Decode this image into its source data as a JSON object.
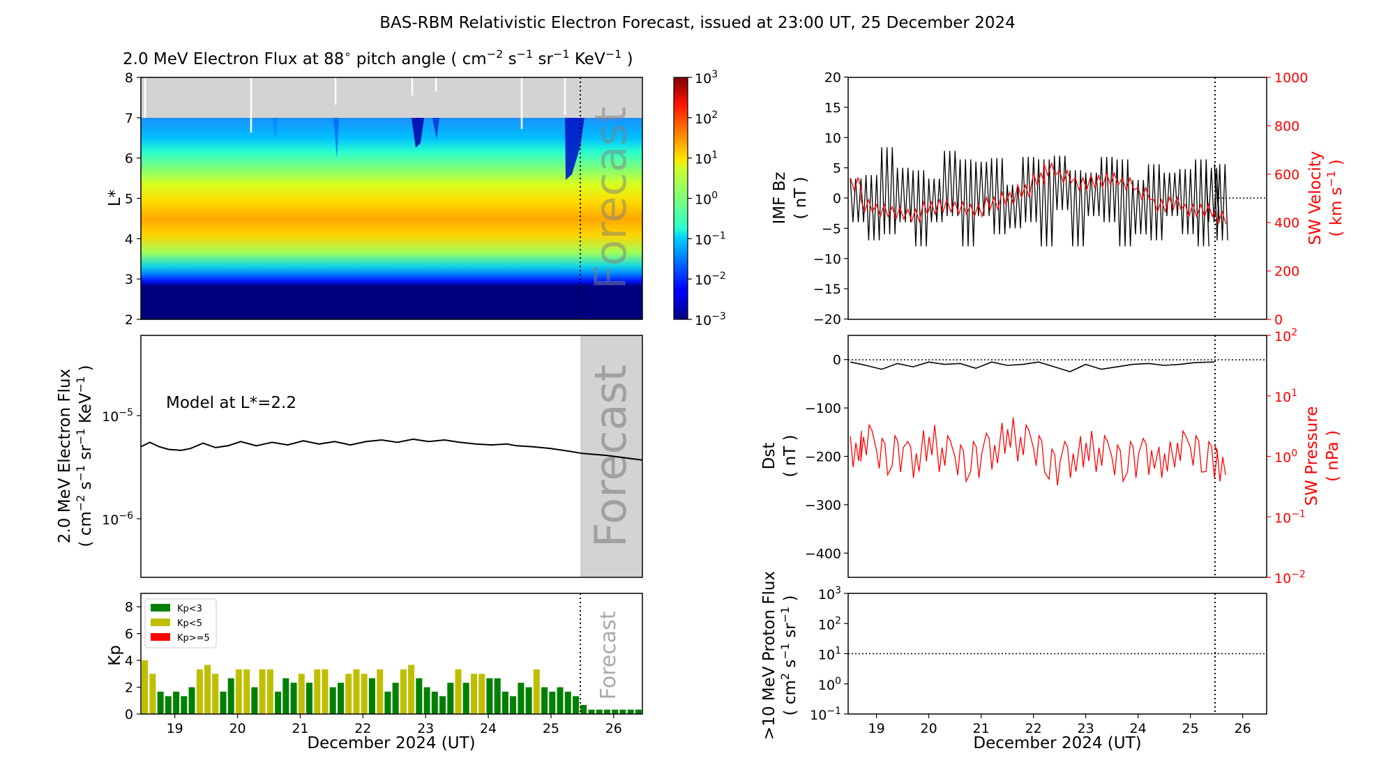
{
  "suptitle": "BAS-RBM Relativistic Electron Forecast, issued at 23:00 UT, 25 December 2024",
  "colors": {
    "observed": "#000000",
    "solar_wind": "#ff0000",
    "forecast_shade": "#d3d3d3",
    "no_data": "#d3d3d3",
    "kp_low": "#008000",
    "kp_mid": "#bfbf00",
    "kp_high": "#ff0000"
  },
  "chart_data": [
    {
      "id": "flux_map",
      "type": "heatmap",
      "title": "2.0 MeV Electron Flux at 88$^\\circ$ pitch angle ( cm$^{-2}$ s$^{-1}$ sr$^{-1}$ KeV$^{-1}$ )",
      "title_parts": {
        "main": "2.0 MeV Electron Flux at 88",
        "deg": "∘",
        "tail": " pitch angle ( cm",
        "e1": "−2",
        "s": " s",
        "e2": "−1",
        "sr": " sr",
        "e3": "−1",
        "kev": " KeV",
        "e4": "−1",
        "close": " )"
      },
      "ylabel": "L*",
      "ylim": [
        2,
        8
      ],
      "yticks": [
        "2",
        "3",
        "4",
        "5",
        "6",
        "7",
        "8"
      ],
      "xlim": [
        "2024-12-18T11:00",
        "2024-12-26T11:00"
      ],
      "forecast_start": "2024-12-25T23:00",
      "forecast_label": "Forecast",
      "colorbar": {
        "scale": "log",
        "range": [
          0.001,
          1000
        ],
        "ticks": [
          {
            "base": "10",
            "exp": "3"
          },
          {
            "base": "10",
            "exp": "2"
          },
          {
            "base": "10",
            "exp": "1"
          },
          {
            "base": "10",
            "exp": "0"
          },
          {
            "base": "10",
            "exp": "−1"
          },
          {
            "base": "10",
            "exp": "−2"
          },
          {
            "base": "10",
            "exp": "−3"
          }
        ]
      },
      "log10_flux_profile": [
        {
          "L": 2.0,
          "v": -3.0
        },
        {
          "L": 3.0,
          "v": -3.0
        },
        {
          "L": 3.1,
          "v": -2.2
        },
        {
          "L": 3.25,
          "v": -1.2
        },
        {
          "L": 3.5,
          "v": 0.3
        },
        {
          "L": 4.0,
          "v": 1.5
        },
        {
          "L": 4.5,
          "v": 1.7
        },
        {
          "L": 5.0,
          "v": 1.2
        },
        {
          "L": 5.5,
          "v": 0.6
        },
        {
          "L": 6.0,
          "v": 0.0
        },
        {
          "L": 6.5,
          "v": -0.5
        },
        {
          "L": 7.0,
          "v": -1.1
        }
      ],
      "no_data_above_L": 7.0
    },
    {
      "id": "flux_l22",
      "type": "line",
      "ylabel": "2.0 MeV Electron Flux",
      "ylabel_units": {
        "open": "( cm",
        "e1": "−2",
        "s": " s",
        "e2": "−1",
        "sr": " sr",
        "e3": "−1",
        "kev": " KeV",
        "e4": "−1",
        "close": " )"
      },
      "yscale": "log",
      "ylim": [
        2.7e-07,
        6e-05
      ],
      "yticks": [
        {
          "base": "10",
          "exp": "−5"
        },
        {
          "base": "10",
          "exp": "−6"
        }
      ],
      "annotation": "Model at L*=2.2",
      "forecast_label": "Forecast",
      "x": [
        "18.46",
        "18.6",
        "18.75",
        "18.9",
        "19.1",
        "19.25",
        "19.45",
        "19.65",
        "19.85",
        "20.05",
        "20.3",
        "20.55",
        "20.8",
        "21.05",
        "21.3",
        "21.55",
        "21.8",
        "22.05",
        "22.3",
        "22.55",
        "22.8",
        "23.05",
        "23.3",
        "23.55",
        "23.8",
        "24.05",
        "24.3",
        "24.45",
        "24.7",
        "25.0",
        "25.3",
        "25.5",
        "25.9",
        "26.46"
      ],
      "values": [
        5e-06,
        5.5e-06,
        5e-06,
        4.7e-06,
        4.6e-06,
        4.8e-06,
        5.4e-06,
        4.9e-06,
        5.1e-06,
        5.6e-06,
        5.1e-06,
        5.5e-06,
        5.2e-06,
        5.7e-06,
        5.3e-06,
        5.6e-06,
        5.2e-06,
        5.6e-06,
        5.8e-06,
        5.5e-06,
        5.9e-06,
        5.6e-06,
        5.8e-06,
        5.5e-06,
        5.3e-06,
        5.2e-06,
        5.3e-06,
        5.1e-06,
        5e-06,
        4.8e-06,
        4.5e-06,
        4.3e-06,
        4.1e-06,
        3.7e-06
      ],
      "x_units": "day of December 2024"
    },
    {
      "id": "kp",
      "type": "bar",
      "ylabel": "Kp",
      "ylim": [
        0,
        9
      ],
      "yticks": [
        "0",
        "2",
        "4",
        "6",
        "8"
      ],
      "xlabel": "December 2024 (UT)",
      "xticks": [
        "19",
        "20",
        "21",
        "22",
        "23",
        "24",
        "25",
        "26"
      ],
      "legend": [
        {
          "name": "Kp<3",
          "color": "#008000"
        },
        {
          "name": "Kp<5",
          "color": "#bfbf00"
        },
        {
          "name": "Kp>=5",
          "color": "#ff0000"
        }
      ],
      "legend_position": "top-left",
      "forecast_label": "Forecast",
      "values": [
        4.0,
        3.0,
        1.67,
        1.33,
        1.67,
        1.33,
        2.0,
        3.33,
        3.67,
        3.0,
        1.67,
        2.67,
        3.33,
        3.33,
        2.0,
        3.33,
        3.33,
        1.67,
        2.67,
        2.33,
        3.0,
        2.33,
        3.33,
        3.33,
        2.0,
        2.33,
        3.0,
        3.33,
        3.0,
        2.67,
        3.33,
        1.67,
        2.33,
        3.33,
        3.67,
        2.67,
        2.0,
        1.67,
        1.33,
        2.33,
        3.33,
        2.33,
        3.0,
        3.0,
        2.67,
        2.67,
        1.67,
        1.33,
        2.33,
        2.0,
        3.33,
        2.0,
        1.67,
        2.0,
        1.67,
        1.33,
        0.67,
        0.33,
        0.33,
        0.33,
        0.33,
        0.33,
        0.33,
        0.33
      ]
    },
    {
      "id": "imf_sw",
      "type": "line",
      "ylabel_left": [
        "IMF Bz",
        "( nT )"
      ],
      "ylim_left": [
        -20,
        20
      ],
      "yticks_left": [
        "20",
        "15",
        "10",
        "5",
        "0",
        "−5",
        "−10",
        "−15",
        "−20"
      ],
      "ylabel_right": "SW Velocity",
      "ylabel_right_units": {
        "open": "( km s",
        "e": "−1",
        "close": " )"
      },
      "ylim_right": [
        0,
        1000
      ],
      "yticks_right": [
        "1000",
        "800",
        "600",
        "400",
        "200",
        "0"
      ],
      "series": [
        {
          "axis": "left",
          "x": [
            "18.5",
            "18.8",
            "19.1",
            "19.4",
            "19.7",
            "20.0",
            "20.3",
            "20.6",
            "20.9",
            "21.2",
            "21.5",
            "21.8",
            "22.1",
            "22.4",
            "22.7",
            "23.0",
            "23.3",
            "23.6",
            "23.9",
            "24.2",
            "24.5",
            "24.8",
            "25.1",
            "25.3",
            "25.46"
          ],
          "values": [
            0,
            -1,
            2,
            1,
            -1,
            0,
            3,
            0,
            2,
            1,
            -1,
            2,
            0,
            3,
            -1,
            1,
            2,
            0,
            -1,
            0,
            1,
            0,
            0,
            1,
            0
          ]
        },
        {
          "axis": "right",
          "x": [
            "18.5",
            "18.7",
            "19.0",
            "19.3",
            "19.6",
            "19.9",
            "20.2",
            "20.5",
            "20.8",
            "21.1",
            "21.4",
            "21.7",
            "22.0",
            "22.2",
            "22.5",
            "22.8",
            "23.1",
            "23.4",
            "23.7",
            "24.0",
            "24.3",
            "24.6",
            "24.9",
            "25.2",
            "25.46"
          ],
          "values": [
            560,
            470,
            450,
            440,
            430,
            460,
            470,
            460,
            450,
            480,
            500,
            530,
            580,
            620,
            590,
            560,
            570,
            580,
            560,
            520,
            470,
            480,
            450,
            450,
            420
          ]
        }
      ]
    },
    {
      "id": "dst_pressure",
      "type": "line",
      "ylabel_left": [
        "Dst",
        "( nT )"
      ],
      "ylim_left": [
        -450,
        50
      ],
      "yticks_left": [
        "0",
        "−100",
        "−200",
        "−300",
        "−400"
      ],
      "ylabel_right": "SW Pressure",
      "ylabel_right_units": "( nPa )",
      "yscale_right": "log",
      "ylim_right": [
        0.01,
        100
      ],
      "yticks_right": [
        {
          "base": "10",
          "exp": "2"
        },
        {
          "base": "10",
          "exp": "1"
        },
        {
          "base": "10",
          "exp": "0"
        },
        {
          "base": "10",
          "exp": "−1"
        },
        {
          "base": "10",
          "exp": "−2"
        }
      ],
      "series": [
        {
          "axis": "left",
          "x": [
            "18.5",
            "18.8",
            "19.1",
            "19.4",
            "19.7",
            "20.0",
            "20.3",
            "20.6",
            "20.9",
            "21.2",
            "21.5",
            "21.8",
            "22.1",
            "22.4",
            "22.7",
            "23.0",
            "23.3",
            "23.6",
            "23.9",
            "24.2",
            "24.5",
            "24.8",
            "25.1",
            "25.46"
          ],
          "values": [
            -5,
            -12,
            -20,
            -8,
            -15,
            -5,
            -10,
            -8,
            -18,
            -5,
            -12,
            -10,
            -5,
            -15,
            -25,
            -10,
            -20,
            -15,
            -10,
            -8,
            -12,
            -10,
            -6,
            -5
          ]
        },
        {
          "axis": "right",
          "x": [
            "18.5",
            "18.7",
            "19.0",
            "19.3",
            "19.6",
            "19.9",
            "20.2",
            "20.5",
            "20.8",
            "21.1",
            "21.4",
            "21.7",
            "22.0",
            "22.3",
            "22.6",
            "22.9",
            "23.2",
            "23.5",
            "23.8",
            "24.1",
            "24.4",
            "24.7",
            "25.0",
            "25.3",
            "25.46"
          ],
          "values": [
            1.2,
            1.5,
            0.9,
            1.0,
            0.8,
            1.5,
            1.0,
            0.7,
            0.8,
            1.1,
            2.0,
            1.5,
            1.0,
            0.6,
            0.8,
            1.2,
            1.0,
            0.7,
            0.8,
            0.9,
            0.8,
            1.2,
            1.0,
            0.8,
            0.7
          ]
        }
      ]
    },
    {
      "id": "proton_flux",
      "type": "line",
      "ylabel": ">10 MeV Proton Flux",
      "ylabel_units": {
        "open": "( cm",
        "e1": "2",
        "s": " s",
        "e2": "−1",
        "sr": " sr",
        "e3": "−1",
        "close": " )"
      },
      "yscale": "log",
      "ylim": [
        0.1,
        1000
      ],
      "yticks": [
        {
          "base": "10",
          "exp": "3"
        },
        {
          "base": "10",
          "exp": "2"
        },
        {
          "base": "10",
          "exp": "1"
        },
        {
          "base": "10",
          "exp": "0"
        },
        {
          "base": "10",
          "exp": "−1"
        }
      ],
      "threshold": 10,
      "xlabel": "December 2024 (UT)",
      "xticks": [
        "19",
        "20",
        "21",
        "22",
        "23",
        "24",
        "25",
        "26"
      ]
    }
  ]
}
